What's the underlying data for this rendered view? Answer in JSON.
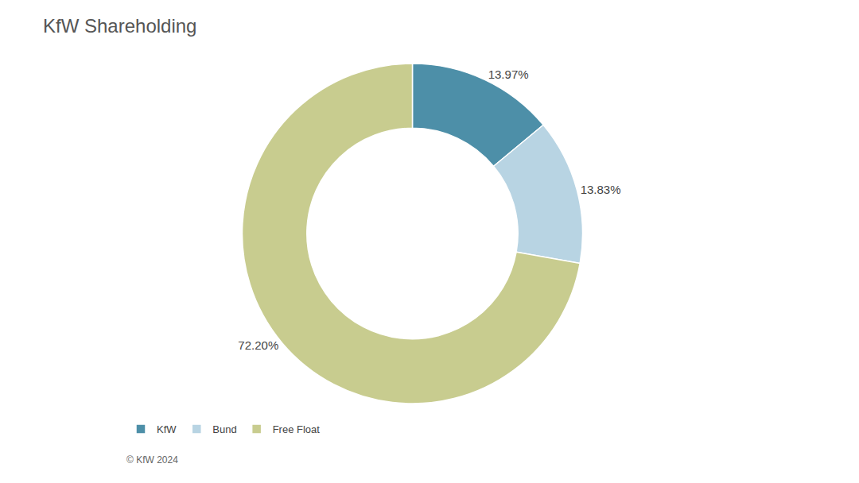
{
  "chart_data": {
    "type": "donut",
    "title": "KfW Shareholding",
    "categories": [
      "KfW",
      "Bund",
      "Free Float"
    ],
    "values": [
      13.97,
      13.83,
      72.2
    ],
    "value_labels": [
      "13.97%",
      "13.83%",
      "72.20%"
    ],
    "colors": [
      "#4d8fa8",
      "#b8d4e3",
      "#c8cc8f"
    ],
    "data_labels": true,
    "legend": "lower left",
    "annotations": [
      "© KfW 2024"
    ]
  }
}
